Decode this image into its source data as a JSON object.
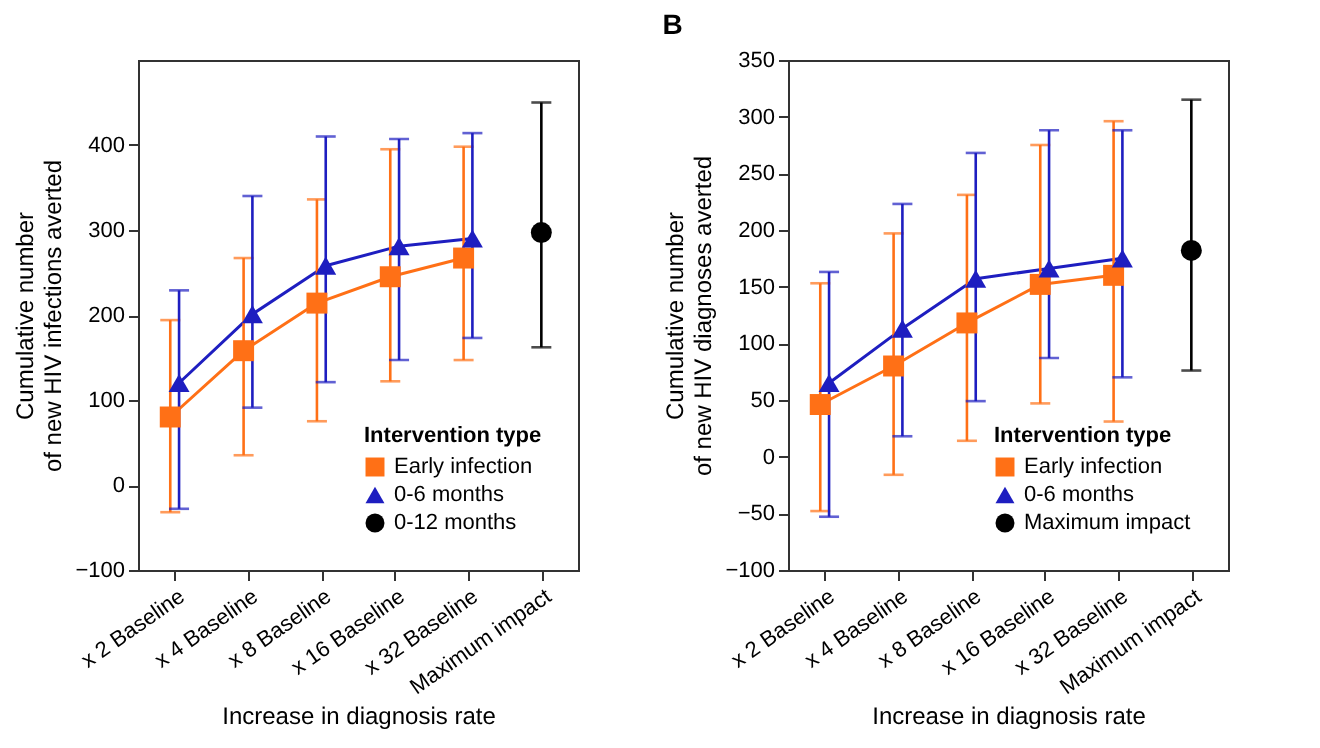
{
  "chart_data": [
    {
      "type": "line",
      "xlabel": "Increase in diagnosis rate",
      "ylabel": "Cumulative number\nof new HIV infections averted",
      "categories": [
        "x 2 Baseline",
        "x 4 Baseline",
        "x 8 Baseline",
        "x 16 Baseline",
        "x 32 Baseline",
        "Maximum impact"
      ],
      "ylim": [
        -100,
        500
      ],
      "yticks": [
        -100,
        0,
        100,
        200,
        300,
        400
      ],
      "grid": false,
      "legend": "bottom right",
      "legend_title": "Intervention type",
      "series": [
        {
          "name": "Early infection",
          "color": "#ff7016",
          "marker": "square",
          "values": [
            80,
            158,
            214,
            245,
            267,
            null
          ],
          "errors": [
            [
              -32,
              194
            ],
            [
              35,
              267
            ],
            [
              75,
              336
            ],
            [
              122,
              395
            ],
            [
              147,
              398
            ],
            null
          ]
        },
        {
          "name": "0-6 months",
          "color": "#1e1ec0",
          "marker": "triangle",
          "values": [
            120,
            201,
            258,
            281,
            290,
            null
          ],
          "errors": [
            [
              -28,
              229
            ],
            [
              91,
              340
            ],
            [
              121,
              410
            ],
            [
              147,
              407
            ],
            [
              173,
              414
            ],
            null
          ]
        },
        {
          "name": "0-12 months",
          "type": "scatter",
          "color": "#000000",
          "marker": "circle",
          "values": [
            null,
            null,
            null,
            null,
            null,
            297
          ],
          "errors": [
            null,
            null,
            null,
            null,
            null,
            [
              162,
              450
            ]
          ]
        }
      ]
    },
    {
      "type": "line",
      "title": "B",
      "xlabel": "Increase in diagnosis rate",
      "ylabel": "Cumulative number\nof new HIV diagnoses averted",
      "categories": [
        "x 2 Baseline",
        "x 4 Baseline",
        "x 8 Baseline",
        "x 16 Baseline",
        "x 32 Baseline",
        "Maximum impact"
      ],
      "ylim": [
        -100,
        350
      ],
      "yticks": [
        -100,
        -50,
        0,
        50,
        100,
        150,
        200,
        250,
        300,
        350
      ],
      "grid": false,
      "legend": "bottom right",
      "legend_title": "Intervention type",
      "series": [
        {
          "name": "Early infection",
          "color": "#ff7016",
          "marker": "square",
          "values": [
            46,
            80,
            118,
            152,
            160,
            null
          ],
          "errors": [
            [
              -48,
              153
            ],
            [
              -16,
              197
            ],
            [
              14,
              231
            ],
            [
              47,
              275
            ],
            [
              31,
              296
            ],
            null
          ]
        },
        {
          "name": "0-6 months",
          "color": "#1e1ec0",
          "marker": "triangle",
          "values": [
            65,
            113,
            157,
            166,
            175,
            null
          ],
          "errors": [
            [
              -53,
              163
            ],
            [
              18,
              223
            ],
            [
              49,
              268
            ],
            [
              87,
              288
            ],
            [
              70,
              288
            ],
            null
          ]
        },
        {
          "name": "Maximum impact",
          "type": "scatter",
          "color": "#000000",
          "marker": "circle",
          "values": [
            null,
            null,
            null,
            null,
            null,
            182
          ],
          "errors": [
            null,
            null,
            null,
            null,
            null,
            [
              76,
              315
            ]
          ]
        }
      ]
    }
  ]
}
